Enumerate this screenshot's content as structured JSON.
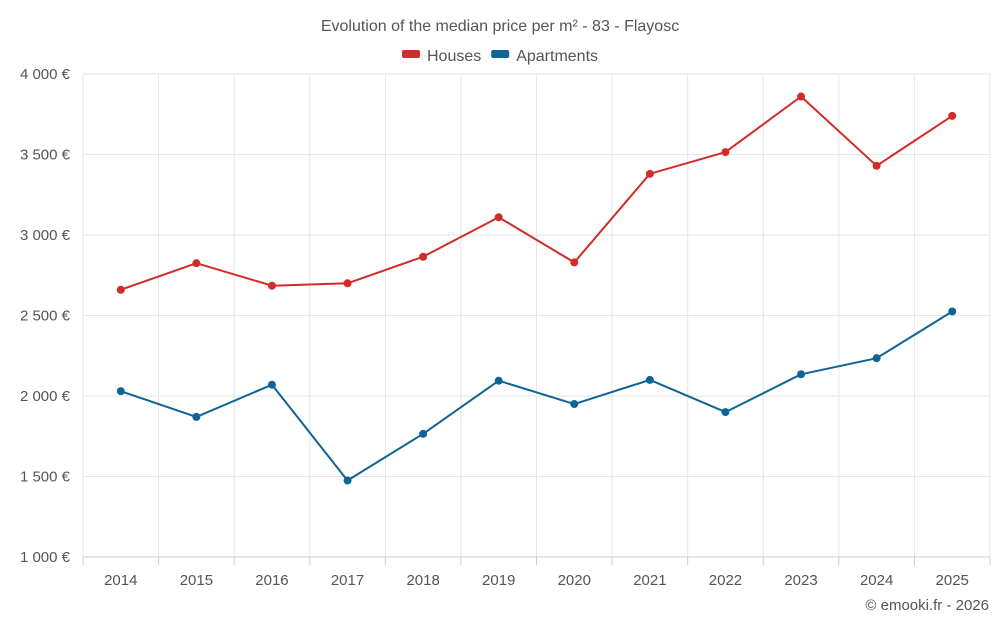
{
  "chart_data": {
    "type": "line",
    "title": "Evolution of the median price per m² - 83 - Flayosc",
    "categories": [
      "2014",
      "2015",
      "2016",
      "2017",
      "2018",
      "2019",
      "2020",
      "2021",
      "2022",
      "2023",
      "2024",
      "2025"
    ],
    "series": [
      {
        "name": "Houses",
        "color": "#d32a2a",
        "values": [
          2660,
          2825,
          2685,
          2700,
          2865,
          3110,
          2830,
          3380,
          3515,
          3860,
          3430,
          3740
        ]
      },
      {
        "name": "Apartments",
        "color": "#0e6496",
        "values": [
          2030,
          1870,
          2070,
          1475,
          1765,
          2095,
          1950,
          2100,
          1900,
          2135,
          2235,
          2525
        ]
      }
    ],
    "yticks": [
      1000,
      1500,
      2000,
      2500,
      3000,
      3500,
      4000
    ],
    "ytick_labels": [
      "1 000 €",
      "1 500 €",
      "2 000 €",
      "2 500 €",
      "3 000 €",
      "3 500 €",
      "4 000 €"
    ],
    "ylim": [
      1000,
      4000
    ],
    "xlabel": "",
    "ylabel": "",
    "grid": true,
    "legend_position": "top-center"
  },
  "credit": "© emooki.fr - 2026"
}
